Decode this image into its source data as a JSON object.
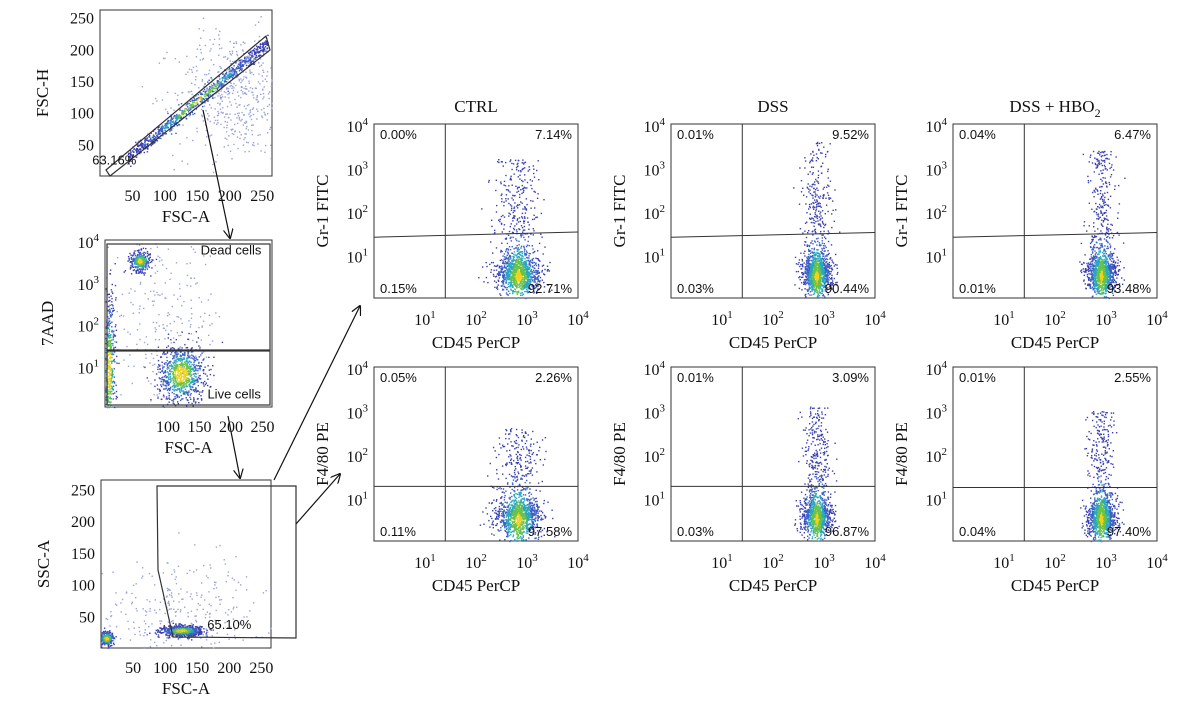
{
  "chart_data": [
    {
      "id": "fsc_singlets",
      "type": "scatter",
      "title": "",
      "xlabel": "FSC-A",
      "ylabel": "FSC-H",
      "xlim": [
        0,
        265
      ],
      "ylim": [
        0,
        262
      ],
      "x_ticks": [
        "50",
        "100",
        "150",
        "200",
        "250"
      ],
      "y_ticks": [
        "50",
        "100",
        "150",
        "200",
        "250"
      ],
      "gate_labels": [
        {
          "text": "63.16%",
          "x": 22,
          "y": 18
        }
      ],
      "populations": [
        {
          "shape": "diagonal",
          "cx": 150,
          "cy": 120,
          "dx": 150,
          "slope": 0.84,
          "spread": 6,
          "n": 900
        },
        {
          "shape": "blob",
          "cx": 205,
          "cy": 130,
          "sx": 45,
          "sy": 50,
          "n": 500,
          "color": "#9aa4d8"
        }
      ]
    },
    {
      "id": "viability",
      "type": "scatter",
      "title": "",
      "xlabel": "FSC-A",
      "ylabel": "7AAD",
      "xlim": [
        0,
        265
      ],
      "ylim": [
        0,
        4
      ],
      "y_scale": "log",
      "x_ticks": [
        "100",
        "150",
        "200",
        "250"
      ],
      "y_ticks": [
        "10^1",
        "10^2",
        "10^3",
        "10^4"
      ],
      "gate_labels": [
        {
          "text": "Dead cells",
          "x": 200,
          "y": 3.65
        },
        {
          "text": "Live cells",
          "x": 205,
          "y": 0.2
        }
      ],
      "populations": [
        {
          "shape": "blob",
          "cx": 55,
          "cy": 3.5,
          "sx": 8,
          "sy": 0.12,
          "n": 350
        },
        {
          "shape": "blob",
          "cx": 120,
          "cy": 0.8,
          "sx": 18,
          "sy": 0.35,
          "n": 900
        },
        {
          "shape": "blob",
          "cx": 6,
          "cy": 0.9,
          "sx": 5,
          "sy": 0.9,
          "n": 500
        },
        {
          "shape": "blob",
          "cx": 90,
          "cy": 2.0,
          "sx": 50,
          "sy": 1.0,
          "n": 250,
          "color": "#9aa4d8"
        }
      ]
    },
    {
      "id": "fsc_ssc",
      "type": "scatter",
      "title": "",
      "xlabel": "FSC-A",
      "ylabel": "SSC-A",
      "xlim": [
        0,
        265
      ],
      "ylim": [
        0,
        265
      ],
      "x_ticks": [
        "50",
        "100",
        "150",
        "200",
        "250"
      ],
      "y_ticks": [
        "50",
        "100",
        "150",
        "200",
        "250"
      ],
      "gate_labels": [
        {
          "text": "65.10%",
          "x": 200,
          "y": 30
        }
      ],
      "populations": [
        {
          "shape": "blob",
          "cx": 125,
          "cy": 28,
          "sx": 15,
          "sy": 4,
          "n": 800
        },
        {
          "shape": "blob",
          "cx": 8,
          "cy": 16,
          "sx": 6,
          "sy": 6,
          "n": 250
        },
        {
          "shape": "blob",
          "cx": 130,
          "cy": 60,
          "sx": 70,
          "sy": 40,
          "n": 300,
          "color": "#9aa4d8"
        }
      ]
    },
    {
      "id": "ctrl_gr1",
      "type": "scatter",
      "title": "CTRL",
      "xlabel": "CD45 PerCP",
      "ylabel": "Gr-1 FITC",
      "x_scale": "log",
      "y_scale": "log",
      "xlim": [
        0,
        4
      ],
      "ylim": [
        0,
        4
      ],
      "x_ticks": [
        "10^1",
        "10^2",
        "10^3",
        "10^4"
      ],
      "y_ticks": [
        "10^1",
        "10^2",
        "10^3",
        "10^4"
      ],
      "quadrants": {
        "UL": "0.00%",
        "UR": "7.14%",
        "LL": "0.15%",
        "LR": "92.71%"
      },
      "populations": [
        {
          "shape": "cd45",
          "cx": 2.82,
          "spread": 0.22,
          "top": 3.2,
          "n": 1400
        }
      ]
    },
    {
      "id": "dss_gr1",
      "type": "scatter",
      "title": "DSS",
      "xlabel": "CD45 PerCP",
      "ylabel": "Gr-1 FITC",
      "x_scale": "log",
      "y_scale": "log",
      "xlim": [
        0,
        4
      ],
      "ylim": [
        0,
        4
      ],
      "x_ticks": [
        "10^1",
        "10^2",
        "10^3",
        "10^4"
      ],
      "y_ticks": [
        "10^1",
        "10^2",
        "10^3",
        "10^4"
      ],
      "quadrants": {
        "UL": "0.01%",
        "UR": "9.52%",
        "LL": "0.03%",
        "LR": "90.44%"
      },
      "populations": [
        {
          "shape": "cd45",
          "cx": 2.85,
          "spread": 0.14,
          "top": 3.6,
          "n": 1400
        }
      ]
    },
    {
      "id": "dsshbo_gr1",
      "type": "scatter",
      "title": "DSS + HBO",
      "title_sub": "2",
      "xlabel": "CD45 PerCP",
      "ylabel": "Gr-1 FITC",
      "x_scale": "log",
      "y_scale": "log",
      "xlim": [
        0,
        4
      ],
      "ylim": [
        0,
        4
      ],
      "x_ticks": [
        "10^1",
        "10^2",
        "10^3",
        "10^4"
      ],
      "y_ticks": [
        "10^1",
        "10^2",
        "10^3",
        "10^4"
      ],
      "quadrants": {
        "UL": "0.04%",
        "UR": "6.47%",
        "LL": "0.01%",
        "LR": "93.48%"
      },
      "populations": [
        {
          "shape": "cd45",
          "cx": 2.9,
          "spread": 0.14,
          "top": 3.4,
          "n": 1400
        }
      ]
    },
    {
      "id": "ctrl_f480",
      "type": "scatter",
      "title": "",
      "xlabel": "CD45 PerCP",
      "ylabel": "F4/80 PE",
      "x_scale": "log",
      "y_scale": "log",
      "xlim": [
        0,
        4
      ],
      "ylim": [
        0,
        4
      ],
      "x_ticks": [
        "10^1",
        "10^2",
        "10^3",
        "10^4"
      ],
      "y_ticks": [
        "10^1",
        "10^2",
        "10^3",
        "10^4"
      ],
      "quadrants": {
        "UL": "0.05%",
        "UR": "2.26%",
        "LL": "0.11%",
        "LR": "97.58%"
      },
      "populations": [
        {
          "shape": "cd45",
          "cx": 2.82,
          "spread": 0.22,
          "top": 2.6,
          "n": 1300
        }
      ]
    },
    {
      "id": "dss_f480",
      "type": "scatter",
      "title": "",
      "xlabel": "CD45 PerCP",
      "ylabel": "F4/80 PE",
      "x_scale": "log",
      "y_scale": "log",
      "xlim": [
        0,
        4
      ],
      "ylim": [
        0,
        4
      ],
      "x_ticks": [
        "10^1",
        "10^2",
        "10^3",
        "10^4"
      ],
      "y_ticks": [
        "10^1",
        "10^2",
        "10^3",
        "10^4"
      ],
      "quadrants": {
        "UL": "0.01%",
        "UR": "3.09%",
        "LL": "0.03%",
        "LR": "96.87%"
      },
      "populations": [
        {
          "shape": "cd45",
          "cx": 2.85,
          "spread": 0.14,
          "top": 3.1,
          "n": 1300
        }
      ]
    },
    {
      "id": "dsshbo_f480",
      "type": "scatter",
      "title": "",
      "xlabel": "CD45 PerCP",
      "ylabel": "F4/80 PE",
      "x_scale": "log",
      "y_scale": "log",
      "xlim": [
        0,
        4
      ],
      "ylim": [
        0,
        4
      ],
      "x_ticks": [
        "10^1",
        "10^2",
        "10^3",
        "10^4"
      ],
      "y_ticks": [
        "10^1",
        "10^2",
        "10^3",
        "10^4"
      ],
      "quadrants": {
        "UL": "0.01%",
        "UR": "2.55%",
        "LL": "0.04%",
        "LR": "97.40%"
      },
      "populations": [
        {
          "shape": "cd45",
          "cx": 2.9,
          "spread": 0.14,
          "top": 3.0,
          "n": 1300
        }
      ]
    }
  ]
}
